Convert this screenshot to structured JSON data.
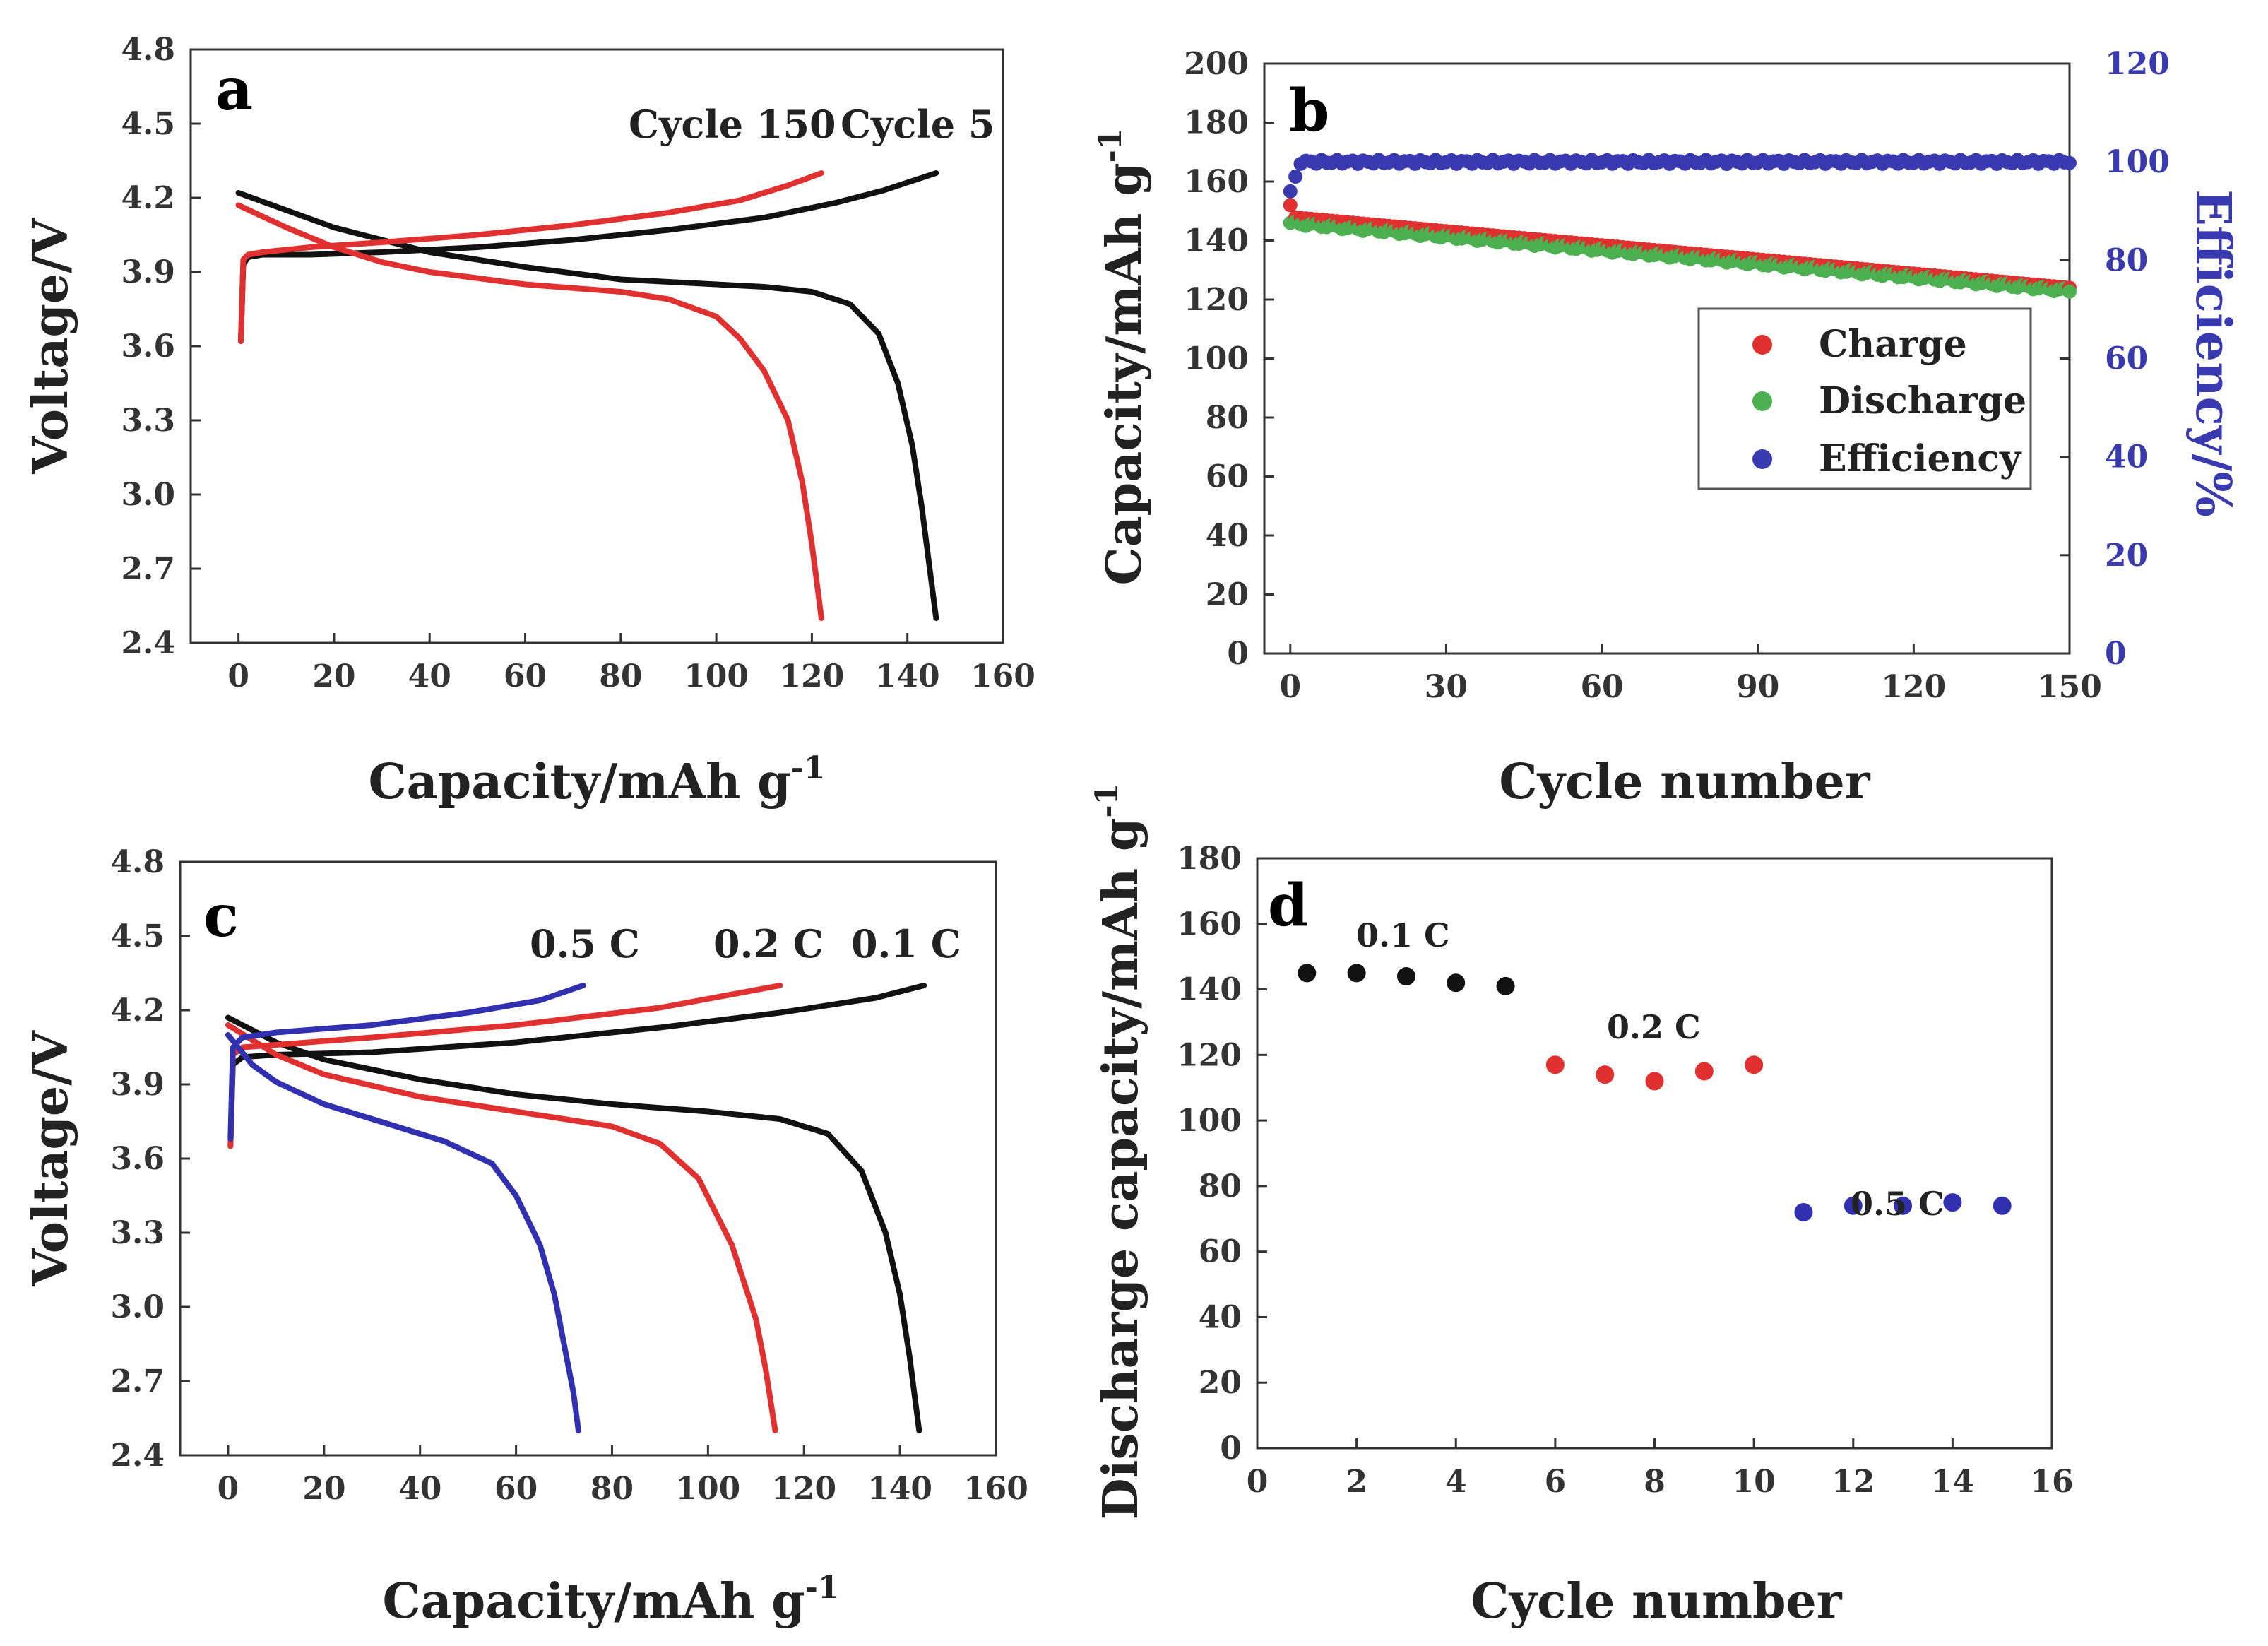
{
  "chart_data": [
    {
      "panel": "a",
      "type": "line",
      "xlabel": "Capacity/mAh g",
      "xlabel_sup": "-1",
      "ylabel": "Voltage/V",
      "xlim": [
        -10,
        160
      ],
      "ylim": [
        2.4,
        4.8
      ],
      "xticks": [
        "0",
        "20",
        "40",
        "60",
        "80",
        "100",
        "120",
        "140",
        "160"
      ],
      "yticks": [
        "2.4",
        "2.7",
        "3.0",
        "3.3",
        "3.6",
        "3.9",
        "4.2",
        "4.5",
        "4.8"
      ],
      "annotations": [
        "Cycle 150",
        "Cycle 5"
      ],
      "series": [
        {
          "name": "Cycle 5 charge",
          "color": "#111111",
          "x": [
            0.5,
            1,
            2,
            5,
            15,
            30,
            50,
            70,
            90,
            110,
            125,
            135,
            146
          ],
          "y": [
            3.62,
            3.93,
            3.96,
            3.97,
            3.97,
            3.98,
            4.0,
            4.03,
            4.07,
            4.12,
            4.18,
            4.23,
            4.3
          ]
        },
        {
          "name": "Cycle 5 discharge",
          "color": "#111111",
          "x": [
            0,
            10,
            20,
            30,
            40,
            60,
            80,
            100,
            110,
            120,
            128,
            134,
            138,
            141,
            143,
            145,
            146
          ],
          "y": [
            4.22,
            4.15,
            4.08,
            4.03,
            3.98,
            3.92,
            3.87,
            3.85,
            3.84,
            3.82,
            3.77,
            3.65,
            3.45,
            3.2,
            2.95,
            2.65,
            2.5
          ]
        },
        {
          "name": "Cycle 150 charge",
          "color": "#e03030",
          "x": [
            0.5,
            1,
            2,
            5,
            15,
            30,
            50,
            70,
            90,
            105,
            115,
            122
          ],
          "y": [
            3.62,
            3.95,
            3.97,
            3.98,
            4.0,
            4.02,
            4.05,
            4.09,
            4.14,
            4.19,
            4.25,
            4.3
          ]
        },
        {
          "name": "Cycle 150 discharge",
          "color": "#e03030",
          "x": [
            0,
            10,
            20,
            30,
            40,
            60,
            80,
            90,
            100,
            105,
            110,
            115,
            118,
            120,
            121,
            122
          ],
          "y": [
            4.17,
            4.08,
            4.0,
            3.94,
            3.9,
            3.85,
            3.82,
            3.79,
            3.72,
            3.63,
            3.5,
            3.3,
            3.05,
            2.8,
            2.65,
            2.5
          ]
        }
      ]
    },
    {
      "panel": "b",
      "type": "scatter",
      "xlabel": "Cycle number",
      "ylabel": "Capacity/mAh g",
      "ylabel_sup": "-1",
      "y2label": "Efficiency/%",
      "xlim": [
        -5,
        150
      ],
      "ylim": [
        0,
        200
      ],
      "y2lim": [
        0,
        120
      ],
      "xticks": [
        "0",
        "30",
        "60",
        "90",
        "120",
        "150"
      ],
      "yticks": [
        "0",
        "20",
        "40",
        "60",
        "80",
        "100",
        "120",
        "140",
        "160",
        "180",
        "200"
      ],
      "y2ticks": [
        "0",
        "20",
        "40",
        "60",
        "80",
        "100",
        "120"
      ],
      "legend": [
        "Charge",
        "Discharge",
        "Efficiency"
      ],
      "legend_loc": "right-middle",
      "series": [
        {
          "name": "Charge",
          "color": "#e03030",
          "axis": "left",
          "start": 148,
          "end": 124
        },
        {
          "name": "Discharge",
          "color": "#4caf50",
          "axis": "left",
          "start": 146,
          "end": 123
        },
        {
          "name": "Efficiency",
          "color": "#3a3ab0",
          "axis": "right",
          "start": 94,
          "end": 100
        }
      ]
    },
    {
      "panel": "c",
      "type": "line",
      "xlabel": "Capacity/mAh g",
      "xlabel_sup": "-1",
      "ylabel": "Voltage/V",
      "xlim": [
        -10,
        160
      ],
      "ylim": [
        2.4,
        4.8
      ],
      "xticks": [
        "0",
        "20",
        "40",
        "60",
        "80",
        "100",
        "120",
        "140",
        "160"
      ],
      "yticks": [
        "2.4",
        "2.7",
        "3.0",
        "3.3",
        "3.6",
        "3.9",
        "4.2",
        "4.5",
        "4.8"
      ],
      "annotations": [
        "0.5 C",
        "0.2 C",
        "0.1 C"
      ],
      "series": [
        {
          "name": "0.1 C charge",
          "color": "#111111",
          "x": [
            0.5,
            1,
            3,
            10,
            30,
            60,
            90,
            115,
            135,
            145
          ],
          "y": [
            3.65,
            3.98,
            4.01,
            4.02,
            4.03,
            4.07,
            4.13,
            4.19,
            4.25,
            4.3
          ]
        },
        {
          "name": "0.1 C discharge",
          "color": "#111111",
          "x": [
            0,
            10,
            20,
            40,
            60,
            80,
            100,
            115,
            125,
            132,
            137,
            140,
            142,
            144
          ],
          "y": [
            4.17,
            4.07,
            4.0,
            3.92,
            3.86,
            3.82,
            3.79,
            3.76,
            3.7,
            3.55,
            3.3,
            3.05,
            2.8,
            2.5
          ]
        },
        {
          "name": "0.2 C charge",
          "color": "#e03030",
          "x": [
            0.5,
            1,
            3,
            10,
            30,
            60,
            90,
            115
          ],
          "y": [
            3.65,
            4.02,
            4.05,
            4.06,
            4.09,
            4.14,
            4.21,
            4.3
          ]
        },
        {
          "name": "0.2 C discharge",
          "color": "#e03030",
          "x": [
            0,
            10,
            20,
            40,
            60,
            80,
            90,
            98,
            105,
            110,
            112,
            114
          ],
          "y": [
            4.14,
            4.02,
            3.94,
            3.85,
            3.79,
            3.73,
            3.66,
            3.52,
            3.25,
            2.95,
            2.75,
            2.5
          ]
        },
        {
          "name": "0.5 C charge",
          "color": "#3030b0",
          "x": [
            0.5,
            1,
            3,
            10,
            30,
            50,
            65,
            74
          ],
          "y": [
            3.68,
            4.05,
            4.09,
            4.11,
            4.14,
            4.19,
            4.24,
            4.3
          ]
        },
        {
          "name": "0.5 C discharge",
          "color": "#3030b0",
          "x": [
            0,
            5,
            10,
            20,
            30,
            45,
            55,
            60,
            65,
            68,
            70,
            72,
            73
          ],
          "y": [
            4.1,
            3.98,
            3.91,
            3.82,
            3.76,
            3.67,
            3.58,
            3.45,
            3.25,
            3.05,
            2.85,
            2.65,
            2.5
          ]
        }
      ]
    },
    {
      "panel": "d",
      "type": "scatter",
      "xlabel": "Cycle number",
      "ylabel": "Discharge capacity/mAh g",
      "ylabel_sup": "-1",
      "xlim": [
        0,
        16
      ],
      "ylim": [
        0,
        180
      ],
      "xticks": [
        "0",
        "2",
        "4",
        "6",
        "8",
        "10",
        "12",
        "14",
        "16"
      ],
      "yticks": [
        "0",
        "20",
        "40",
        "60",
        "80",
        "100",
        "120",
        "140",
        "160",
        "180"
      ],
      "annotations": [
        "0.1 C",
        "0.2 C",
        "0.5 C"
      ],
      "series": [
        {
          "name": "0.1 C",
          "color": "#111111",
          "x": [
            1,
            2,
            3,
            4,
            5
          ],
          "y": [
            145,
            145,
            144,
            142,
            141
          ]
        },
        {
          "name": "0.2 C",
          "color": "#e03030",
          "x": [
            6,
            7,
            8,
            9,
            10
          ],
          "y": [
            117,
            114,
            112,
            115,
            117
          ]
        },
        {
          "name": "0.5 C",
          "color": "#3030b0",
          "x": [
            11,
            12,
            13,
            14,
            15
          ],
          "y": [
            72,
            74,
            74,
            75,
            74
          ]
        }
      ]
    }
  ],
  "panel_labels": [
    "a",
    "b",
    "c",
    "d"
  ]
}
